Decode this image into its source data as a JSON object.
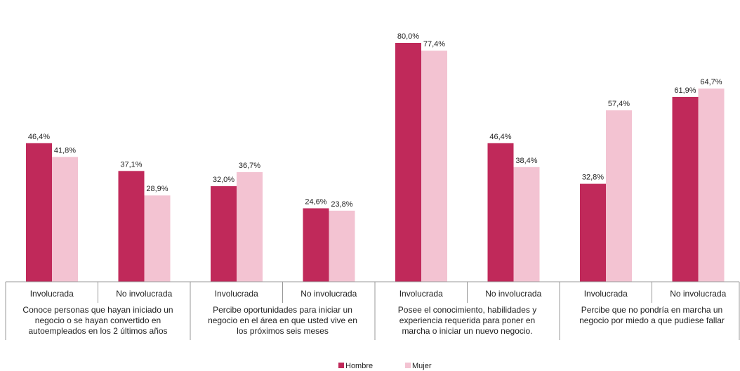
{
  "chart_data": {
    "type": "bar",
    "series": [
      {
        "name": "Hombre",
        "color": "#C0295A",
        "values": [
          46.4,
          37.1,
          32.0,
          24.6,
          80.0,
          46.4,
          32.8,
          61.9
        ],
        "labels": [
          "46,4%",
          "37,1%",
          "32,0%",
          "24,6%",
          "80,0%",
          "46,4%",
          "32,8%",
          "61,9%"
        ]
      },
      {
        "name": "Mujer",
        "color": "#F3C3D2",
        "values": [
          41.8,
          28.9,
          36.7,
          23.8,
          77.4,
          38.4,
          57.4,
          64.7
        ],
        "labels": [
          "41,8%",
          "28,9%",
          "36,7%",
          "23,8%",
          "77,4%",
          "38,4%",
          "57,4%",
          "64,7%"
        ]
      }
    ],
    "categories": [
      "Involucrada",
      "No involucrada",
      "Involucrada",
      "No involucrada",
      "Involucrada",
      "No involucrada",
      "Involucrada",
      "No involucrada"
    ],
    "groups": [
      {
        "lines": [
          "Conoce personas que hayan iniciado un",
          "negocio o se hayan convertido en",
          "autoempleados en los 2 últimos años"
        ]
      },
      {
        "lines": [
          "Percibe oportunidades para iniciar un",
          "negocio en el área en que usted vive en",
          "los próximos seis meses"
        ]
      },
      {
        "lines": [
          "Posee el conocimiento, habilidades y",
          "experiencia requerida para poner en",
          "marcha o iniciar un nuevo negocio."
        ]
      },
      {
        "lines": [
          "Percibe que no pondría en marcha un",
          "negocio por miedo a que pudiese fallar"
        ]
      }
    ],
    "ylim": [
      0,
      100
    ],
    "legend_position": "bottom",
    "grid": false
  }
}
